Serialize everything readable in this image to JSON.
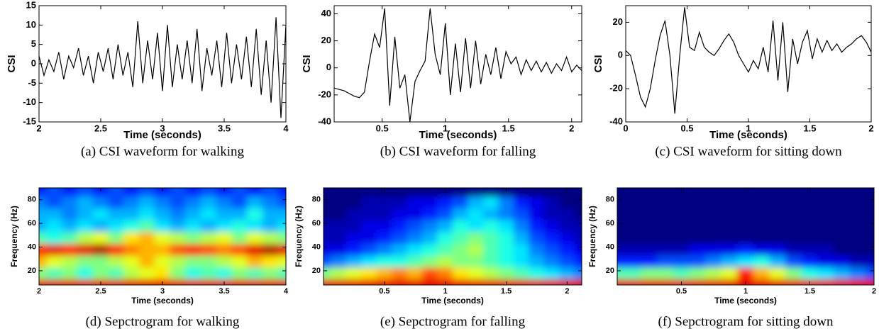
{
  "chart_data": [
    {
      "type": "line",
      "caption": "(a) CSI waveform for walking",
      "xlabel": "Time (seconds)",
      "ylabel": "CSI",
      "color": "#000000",
      "x": [
        2.0,
        2.04,
        2.08,
        2.12,
        2.16,
        2.2,
        2.24,
        2.28,
        2.32,
        2.36,
        2.4,
        2.44,
        2.48,
        2.52,
        2.56,
        2.6,
        2.64,
        2.68,
        2.72,
        2.76,
        2.8,
        2.84,
        2.88,
        2.92,
        2.96,
        3.0,
        3.04,
        3.08,
        3.12,
        3.16,
        3.2,
        3.24,
        3.28,
        3.32,
        3.36,
        3.4,
        3.44,
        3.48,
        3.52,
        3.56,
        3.6,
        3.64,
        3.68,
        3.72,
        3.76,
        3.8,
        3.84,
        3.88,
        3.92,
        3.96,
        4.0
      ],
      "values": [
        2,
        -3,
        1,
        -2,
        3,
        -4,
        2,
        -1,
        4,
        -3,
        2,
        -5,
        3,
        -2,
        4,
        -4,
        5,
        -3,
        3,
        -6,
        11,
        -5,
        6,
        -4,
        8,
        -7,
        10,
        -6,
        5,
        -4,
        6,
        -5,
        9,
        -7,
        4,
        -3,
        6,
        -6,
        8,
        -5,
        5,
        -4,
        7,
        -6,
        9,
        -8,
        6,
        -10,
        12,
        -14,
        10
      ],
      "xlim": [
        2,
        4
      ],
      "xticks": [
        2,
        2.5,
        3,
        3.5,
        4
      ],
      "ylim": [
        -15,
        15
      ],
      "yticks": [
        -15,
        -10,
        -5,
        0,
        5,
        10,
        15
      ]
    },
    {
      "type": "line",
      "caption": "(b) CSI waveform for falling",
      "xlabel": "Time (seconds)",
      "ylabel": "CSI",
      "color": "#000000",
      "x": [
        0.12,
        0.16,
        0.2,
        0.24,
        0.28,
        0.32,
        0.36,
        0.4,
        0.44,
        0.48,
        0.52,
        0.56,
        0.6,
        0.64,
        0.68,
        0.72,
        0.76,
        0.8,
        0.84,
        0.88,
        0.92,
        0.96,
        1.0,
        1.04,
        1.08,
        1.12,
        1.16,
        1.2,
        1.24,
        1.28,
        1.32,
        1.36,
        1.4,
        1.44,
        1.48,
        1.52,
        1.56,
        1.6,
        1.64,
        1.68,
        1.72,
        1.76,
        1.8,
        1.84,
        1.88,
        1.92,
        1.96,
        2.0,
        2.04,
        2.08
      ],
      "values": [
        -15,
        -16,
        -17,
        -19,
        -21,
        -22,
        -18,
        5,
        25,
        15,
        44,
        -28,
        23,
        -15,
        -5,
        -40,
        -10,
        -2,
        5,
        44,
        10,
        -5,
        33,
        -20,
        18,
        -18,
        22,
        -15,
        20,
        -12,
        10,
        -5,
        15,
        -8,
        12,
        3,
        8,
        -5,
        6,
        -2,
        5,
        -3,
        4,
        -4,
        3,
        -2,
        8,
        -3,
        2,
        -2
      ],
      "xlim": [
        0.12,
        2.08
      ],
      "xticks": [
        0.5,
        1,
        1.5,
        2
      ],
      "ylim": [
        -40,
        46
      ],
      "yticks": [
        -40,
        -20,
        0,
        20,
        40
      ]
    },
    {
      "type": "line",
      "caption": "(c) CSI waveform for sitting down",
      "xlabel": "Time (seconds)",
      "ylabel": "CSI",
      "color": "#000000",
      "x": [
        0,
        0.04,
        0.08,
        0.12,
        0.16,
        0.2,
        0.24,
        0.28,
        0.32,
        0.36,
        0.4,
        0.44,
        0.48,
        0.52,
        0.56,
        0.6,
        0.64,
        0.68,
        0.72,
        0.76,
        0.8,
        0.84,
        0.88,
        0.92,
        0.96,
        1.0,
        1.04,
        1.08,
        1.12,
        1.16,
        1.2,
        1.24,
        1.28,
        1.32,
        1.36,
        1.4,
        1.44,
        1.48,
        1.52,
        1.56,
        1.6,
        1.64,
        1.68,
        1.72,
        1.76,
        1.8,
        1.84,
        1.88,
        1.92,
        1.96,
        2.0
      ],
      "values": [
        3,
        0,
        -12,
        -25,
        -31,
        -20,
        -3,
        12,
        21,
        0,
        -35,
        0,
        29,
        5,
        3,
        14,
        5,
        2,
        0,
        4,
        9,
        13,
        8,
        0,
        -5,
        -10,
        -3,
        -8,
        5,
        -10,
        21,
        -15,
        20,
        -22,
        10,
        -5,
        8,
        15,
        -2,
        10,
        2,
        9,
        3,
        7,
        2,
        5,
        7,
        10,
        12,
        8,
        2
      ],
      "xlim": [
        0,
        2
      ],
      "xticks": [
        0,
        0.5,
        1,
        1.5,
        2
      ],
      "ylim": [
        -40,
        30
      ],
      "yticks": [
        -40,
        -20,
        0,
        20
      ]
    },
    {
      "type": "heatmap",
      "caption": "(d) Sepctrogram for walking",
      "xlabel": "Time (seconds)",
      "ylabel": "Frequency (Hz)",
      "colormap": "jet",
      "clim": [
        0,
        1
      ],
      "x": [
        2.0,
        2.125,
        2.25,
        2.375,
        2.5,
        2.625,
        2.75,
        2.875,
        3.0,
        3.125,
        3.25,
        3.375,
        3.5,
        3.625,
        3.75,
        3.875,
        4.0
      ],
      "y": [
        8,
        18,
        28,
        38,
        48,
        58,
        68,
        78,
        88
      ],
      "z": [
        [
          0.9,
          0.9,
          0.9,
          0.9,
          0.9,
          0.9,
          0.9,
          0.9,
          0.9,
          0.9,
          0.9,
          0.9,
          0.9,
          0.9,
          0.9,
          0.9,
          0.9
        ],
        [
          0.5,
          0.45,
          0.5,
          0.4,
          0.5,
          0.45,
          0.55,
          0.6,
          0.65,
          0.5,
          0.4,
          0.45,
          0.4,
          0.5,
          0.45,
          0.5,
          0.45
        ],
        [
          0.7,
          0.6,
          0.55,
          0.5,
          0.5,
          0.55,
          0.6,
          0.7,
          0.6,
          0.55,
          0.5,
          0.5,
          0.55,
          0.6,
          0.7,
          0.65,
          0.6
        ],
        [
          0.85,
          0.9,
          0.85,
          0.9,
          0.95,
          0.85,
          0.75,
          0.7,
          0.7,
          0.8,
          0.85,
          0.8,
          0.75,
          0.8,
          0.9,
          0.95,
          0.9
        ],
        [
          0.45,
          0.4,
          0.45,
          0.55,
          0.6,
          0.5,
          0.65,
          0.7,
          0.6,
          0.55,
          0.5,
          0.55,
          0.6,
          0.5,
          0.6,
          0.55,
          0.5
        ],
        [
          0.3,
          0.35,
          0.3,
          0.35,
          0.3,
          0.35,
          0.4,
          0.45,
          0.35,
          0.3,
          0.35,
          0.3,
          0.35,
          0.4,
          0.35,
          0.3,
          0.35
        ],
        [
          0.3,
          0.3,
          0.25,
          0.3,
          0.35,
          0.3,
          0.3,
          0.35,
          0.3,
          0.25,
          0.3,
          0.35,
          0.3,
          0.3,
          0.4,
          0.3,
          0.3
        ],
        [
          0.25,
          0.2,
          0.25,
          0.3,
          0.25,
          0.2,
          0.25,
          0.3,
          0.25,
          0.2,
          0.25,
          0.3,
          0.25,
          0.2,
          0.3,
          0.25,
          0.2
        ],
        [
          0.15,
          0.2,
          0.15,
          0.2,
          0.15,
          0.2,
          0.15,
          0.2,
          0.15,
          0.2,
          0.15,
          0.2,
          0.15,
          0.2,
          0.15,
          0.2,
          0.15
        ]
      ],
      "xlim": [
        2,
        4
      ],
      "xticks": [
        2,
        2.5,
        3,
        3.5,
        4
      ],
      "ylim": [
        8,
        90
      ],
      "yticks": [
        20,
        40,
        60,
        80
      ]
    },
    {
      "type": "heatmap",
      "caption": "(e) Sepctrogram for falling",
      "xlabel": "Time (seconds)",
      "ylabel": "Frequency (Hz)",
      "colormap": "jet",
      "clim": [
        0,
        1
      ],
      "x": [
        0,
        0.125,
        0.25,
        0.375,
        0.5,
        0.625,
        0.75,
        0.875,
        1.0,
        1.125,
        1.25,
        1.375,
        1.5,
        1.625,
        1.75,
        1.875,
        2.0,
        2.125
      ],
      "y": [
        8,
        18,
        28,
        38,
        48,
        58,
        68,
        78,
        88
      ],
      "z": [
        [
          0.9,
          0.9,
          0.9,
          0.9,
          0.9,
          0.9,
          0.9,
          0.9,
          0.9,
          0.9,
          0.9,
          0.9,
          0.9,
          0.9,
          0.9,
          0.9,
          0.9,
          0.9
        ],
        [
          0.5,
          0.55,
          0.6,
          0.65,
          0.7,
          0.75,
          0.7,
          0.8,
          0.75,
          0.65,
          0.6,
          0.55,
          0.5,
          0.45,
          0.4,
          0.35,
          0.3,
          0.25
        ],
        [
          0.2,
          0.25,
          0.3,
          0.35,
          0.4,
          0.4,
          0.45,
          0.5,
          0.55,
          0.5,
          0.5,
          0.45,
          0.4,
          0.35,
          0.3,
          0.25,
          0.2,
          0.15
        ],
        [
          0.1,
          0.1,
          0.15,
          0.2,
          0.25,
          0.3,
          0.35,
          0.4,
          0.45,
          0.5,
          0.55,
          0.45,
          0.4,
          0.35,
          0.25,
          0.2,
          0.15,
          0.1
        ],
        [
          0.05,
          0.05,
          0.1,
          0.1,
          0.15,
          0.2,
          0.25,
          0.3,
          0.4,
          0.45,
          0.5,
          0.45,
          0.4,
          0.3,
          0.2,
          0.15,
          0.1,
          0.05
        ],
        [
          0.05,
          0.05,
          0.05,
          0.1,
          0.1,
          0.15,
          0.2,
          0.25,
          0.3,
          0.4,
          0.35,
          0.4,
          0.35,
          0.25,
          0.15,
          0.1,
          0.05,
          0.05
        ],
        [
          0,
          0,
          0.05,
          0.05,
          0.05,
          0.1,
          0.1,
          0.15,
          0.2,
          0.3,
          0.35,
          0.3,
          0.25,
          0.2,
          0.1,
          0.05,
          0.05,
          0
        ],
        [
          0,
          0,
          0,
          0.05,
          0.05,
          0.05,
          0.1,
          0.1,
          0.15,
          0.2,
          0.3,
          0.35,
          0.25,
          0.15,
          0.1,
          0.05,
          0,
          0
        ],
        [
          0,
          0,
          0,
          0,
          0,
          0,
          0,
          0,
          0,
          0,
          0,
          0,
          0,
          0,
          0,
          0,
          0,
          0
        ]
      ],
      "xlim": [
        0,
        2.12
      ],
      "xticks": [
        0.5,
        1,
        1.5,
        2
      ],
      "ylim": [
        8,
        90
      ],
      "yticks": [
        20,
        40,
        60,
        80
      ]
    },
    {
      "type": "heatmap",
      "caption": "(f) Sepctrogram for sitting down",
      "xlabel": "Time (seconds)",
      "ylabel": "Frequency (Hz)",
      "colormap": "jet",
      "clim": [
        0,
        1
      ],
      "x": [
        0,
        0.125,
        0.25,
        0.375,
        0.5,
        0.625,
        0.75,
        0.875,
        1.0,
        1.125,
        1.25,
        1.375,
        1.5,
        1.625,
        1.75,
        1.875,
        2.0
      ],
      "y": [
        8,
        18,
        28,
        38,
        48,
        58,
        68,
        78,
        88
      ],
      "z": [
        [
          0.9,
          0.9,
          0.9,
          0.9,
          0.9,
          0.9,
          0.9,
          0.9,
          0.9,
          0.9,
          0.9,
          0.9,
          0.9,
          0.9,
          0.9,
          0.9,
          0.9
        ],
        [
          0.45,
          0.45,
          0.5,
          0.5,
          0.45,
          0.5,
          0.55,
          0.6,
          0.85,
          0.7,
          0.6,
          0.5,
          0.4,
          0.35,
          0.3,
          0.25,
          0.2
        ],
        [
          0.15,
          0.15,
          0.15,
          0.2,
          0.2,
          0.2,
          0.25,
          0.3,
          0.35,
          0.4,
          0.3,
          0.2,
          0.15,
          0.1,
          0.1,
          0.05,
          0.05
        ],
        [
          0.05,
          0.05,
          0.05,
          0.05,
          0.05,
          0.1,
          0.1,
          0.1,
          0.15,
          0.1,
          0.1,
          0.05,
          0.05,
          0.05,
          0,
          0,
          0
        ],
        [
          0,
          0,
          0,
          0,
          0,
          0,
          0,
          0,
          0,
          0,
          0,
          0,
          0,
          0,
          0,
          0,
          0
        ],
        [
          0,
          0,
          0,
          0,
          0,
          0,
          0,
          0,
          0,
          0,
          0,
          0,
          0,
          0,
          0,
          0,
          0
        ],
        [
          0,
          0,
          0,
          0,
          0,
          0,
          0,
          0,
          0,
          0,
          0,
          0,
          0,
          0,
          0,
          0,
          0
        ],
        [
          0,
          0,
          0,
          0,
          0,
          0,
          0,
          0,
          0,
          0,
          0,
          0,
          0,
          0,
          0,
          0,
          0
        ],
        [
          0,
          0,
          0,
          0,
          0,
          0,
          0,
          0,
          0,
          0,
          0,
          0,
          0,
          0,
          0,
          0,
          0
        ]
      ],
      "xlim": [
        0,
        2
      ],
      "xticks": [
        0.5,
        1,
        1.5,
        2
      ],
      "ylim": [
        8,
        90
      ],
      "yticks": [
        20,
        40,
        60,
        80
      ]
    }
  ]
}
